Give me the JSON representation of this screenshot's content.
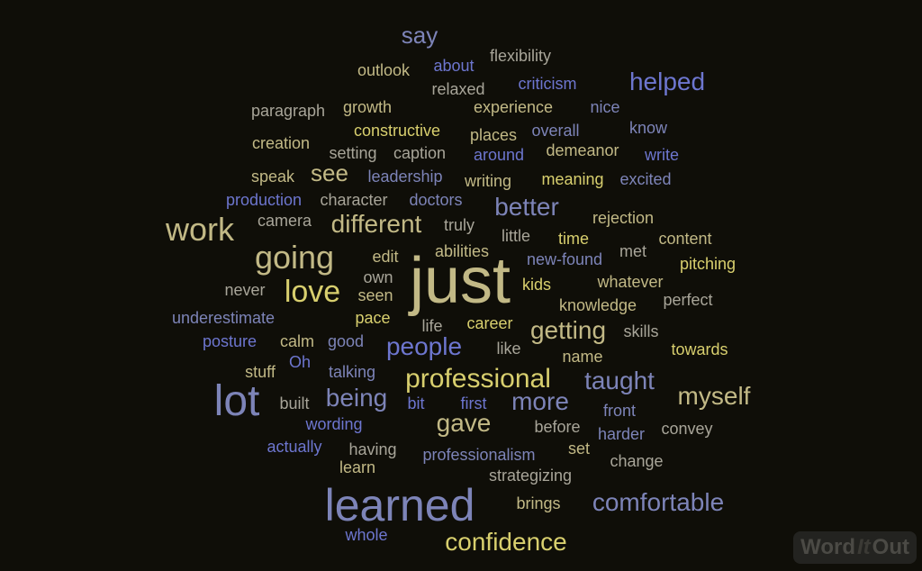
{
  "words": [
    {
      "text": "just",
      "c": "c-khaki"
    },
    {
      "text": "learned",
      "c": "c-slate"
    },
    {
      "text": "lot",
      "c": "c-slate"
    },
    {
      "text": "work",
      "c": "c-khaki"
    },
    {
      "text": "going",
      "c": "c-khaki"
    },
    {
      "text": "love",
      "c": "c-gold"
    },
    {
      "text": "professional",
      "c": "c-gold"
    },
    {
      "text": "comfortable",
      "c": "c-slate"
    },
    {
      "text": "confidence",
      "c": "c-gold"
    },
    {
      "text": "myself",
      "c": "c-khaki"
    },
    {
      "text": "helped",
      "c": "c-blue"
    },
    {
      "text": "people",
      "c": "c-blue"
    },
    {
      "text": "taught",
      "c": "c-slate"
    },
    {
      "text": "getting",
      "c": "c-khaki"
    },
    {
      "text": "more",
      "c": "c-slate"
    },
    {
      "text": "being",
      "c": "c-slate"
    },
    {
      "text": "gave",
      "c": "c-khaki"
    },
    {
      "text": "different",
      "c": "c-khaki"
    },
    {
      "text": "better",
      "c": "c-slate"
    },
    {
      "text": "see",
      "c": "c-khaki"
    },
    {
      "text": "say",
      "c": "c-slate"
    },
    {
      "text": "flexibility",
      "c": "c-gray"
    },
    {
      "text": "outlook",
      "c": "c-khaki"
    },
    {
      "text": "about",
      "c": "c-blue"
    },
    {
      "text": "relaxed",
      "c": "c-gray"
    },
    {
      "text": "criticism",
      "c": "c-blue"
    },
    {
      "text": "paragraph",
      "c": "c-gray"
    },
    {
      "text": "growth",
      "c": "c-khaki"
    },
    {
      "text": "experience",
      "c": "c-khaki"
    },
    {
      "text": "nice",
      "c": "c-slate"
    },
    {
      "text": "know",
      "c": "c-slate"
    },
    {
      "text": "constructive",
      "c": "c-gold"
    },
    {
      "text": "creation",
      "c": "c-khaki"
    },
    {
      "text": "places",
      "c": "c-khaki"
    },
    {
      "text": "overall",
      "c": "c-slate"
    },
    {
      "text": "setting",
      "c": "c-gray"
    },
    {
      "text": "caption",
      "c": "c-gray"
    },
    {
      "text": "demeanor",
      "c": "c-khaki"
    },
    {
      "text": "around",
      "c": "c-blue"
    },
    {
      "text": "write",
      "c": "c-blue"
    },
    {
      "text": "speak",
      "c": "c-khaki"
    },
    {
      "text": "leadership",
      "c": "c-slate"
    },
    {
      "text": "writing",
      "c": "c-khaki"
    },
    {
      "text": "meaning",
      "c": "c-gold"
    },
    {
      "text": "excited",
      "c": "c-slate"
    },
    {
      "text": "production",
      "c": "c-blue"
    },
    {
      "text": "character",
      "c": "c-gray"
    },
    {
      "text": "doctors",
      "c": "c-slate"
    },
    {
      "text": "camera",
      "c": "c-gray"
    },
    {
      "text": "truly",
      "c": "c-gray"
    },
    {
      "text": "rejection",
      "c": "c-khaki"
    },
    {
      "text": "little",
      "c": "c-gray"
    },
    {
      "text": "time",
      "c": "c-gold"
    },
    {
      "text": "abilities",
      "c": "c-khaki"
    },
    {
      "text": "content",
      "c": "c-khaki"
    },
    {
      "text": "edit",
      "c": "c-khaki"
    },
    {
      "text": "met",
      "c": "c-gray"
    },
    {
      "text": "new-found",
      "c": "c-slate"
    },
    {
      "text": "pitching",
      "c": "c-gold"
    },
    {
      "text": "own",
      "c": "c-gray"
    },
    {
      "text": "never",
      "c": "c-gray"
    },
    {
      "text": "seen",
      "c": "c-khaki"
    },
    {
      "text": "kids",
      "c": "c-gold"
    },
    {
      "text": "whatever",
      "c": "c-khaki"
    },
    {
      "text": "perfect",
      "c": "c-gray"
    },
    {
      "text": "knowledge",
      "c": "c-khaki"
    },
    {
      "text": "underestimate",
      "c": "c-slate"
    },
    {
      "text": "pace",
      "c": "c-gold"
    },
    {
      "text": "life",
      "c": "c-gray"
    },
    {
      "text": "career",
      "c": "c-gold"
    },
    {
      "text": "skills",
      "c": "c-gray"
    },
    {
      "text": "posture",
      "c": "c-blue"
    },
    {
      "text": "calm",
      "c": "c-khaki"
    },
    {
      "text": "good",
      "c": "c-slate"
    },
    {
      "text": "like",
      "c": "c-gray"
    },
    {
      "text": "towards",
      "c": "c-gold"
    },
    {
      "text": "stuff",
      "c": "c-khaki"
    },
    {
      "text": "Oh",
      "c": "c-blue"
    },
    {
      "text": "talking",
      "c": "c-slate"
    },
    {
      "text": "name",
      "c": "c-khaki"
    },
    {
      "text": "built",
      "c": "c-gray"
    },
    {
      "text": "bit",
      "c": "c-blue"
    },
    {
      "text": "first",
      "c": "c-blue"
    },
    {
      "text": "front",
      "c": "c-slate"
    },
    {
      "text": "wording",
      "c": "c-blue"
    },
    {
      "text": "before",
      "c": "c-gray"
    },
    {
      "text": "convey",
      "c": "c-gray"
    },
    {
      "text": "harder",
      "c": "c-slate"
    },
    {
      "text": "actually",
      "c": "c-blue"
    },
    {
      "text": "having",
      "c": "c-gray"
    },
    {
      "text": "set",
      "c": "c-khaki"
    },
    {
      "text": "professionalism",
      "c": "c-slate"
    },
    {
      "text": "learn",
      "c": "c-khaki"
    },
    {
      "text": "change",
      "c": "c-gray"
    },
    {
      "text": "strategizing",
      "c": "c-gray"
    },
    {
      "text": "brings",
      "c": "c-khaki"
    },
    {
      "text": "whole",
      "c": "c-blue"
    }
  ],
  "logo": {
    "part1": "Word",
    "part2": "It",
    "part3": "Out"
  }
}
